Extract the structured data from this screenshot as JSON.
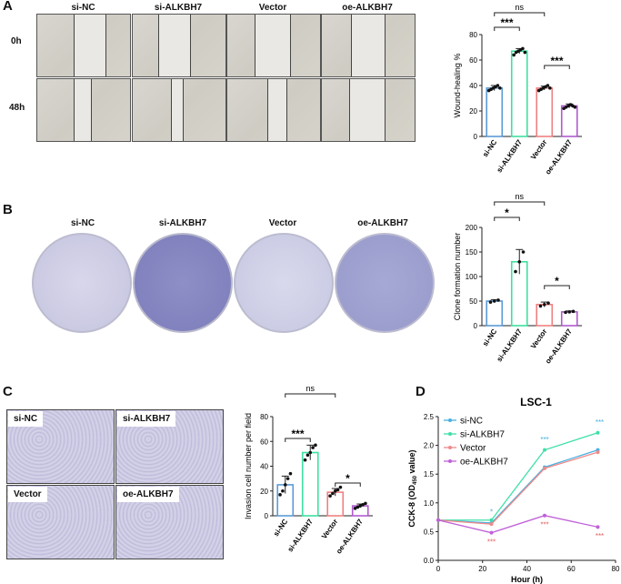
{
  "panels": {
    "A": {
      "label": "A",
      "columns": [
        "si-NC",
        "si-ALKBH7",
        "Vector",
        "oe-ALKBH7"
      ],
      "rows": [
        "0h",
        "48h"
      ]
    },
    "B": {
      "label": "B",
      "columns": [
        "si-NC",
        "si-ALKBH7",
        "Vector",
        "oe-ALKBH7"
      ]
    },
    "C": {
      "label": "C",
      "images": [
        "si-NC",
        "si-ALKBH7",
        "Vector",
        "oe-ALKBH7"
      ]
    },
    "D": {
      "label": "D"
    }
  },
  "chart_data": [
    {
      "id": "A",
      "type": "bar",
      "categories": [
        "si-NC",
        "si-ALKBH7",
        "Vector",
        "oe-ALKBH7"
      ],
      "values": [
        38,
        67,
        38,
        24
      ],
      "errors": [
        2,
        2,
        1.5,
        1.5
      ],
      "points": [
        [
          36,
          37,
          38,
          39,
          40,
          38
        ],
        [
          64,
          66,
          67,
          68,
          69,
          66
        ],
        [
          36,
          37,
          38,
          39,
          40,
          38
        ],
        [
          22,
          23,
          24,
          25,
          24,
          23
        ]
      ],
      "colors": [
        "#5b9bd5",
        "#3ee0a0",
        "#f08080",
        "#b05ad0"
      ],
      "xlabel": "",
      "ylabel": "Wound-healing %",
      "yticks": [
        "0",
        "20",
        "40",
        "60",
        "80"
      ],
      "ylim": [
        0,
        80
      ],
      "significance": [
        {
          "from": 0,
          "to": 1,
          "label": "***"
        },
        {
          "from": 0,
          "to": 2,
          "label": "ns"
        },
        {
          "from": 2,
          "to": 3,
          "label": "***"
        }
      ]
    },
    {
      "id": "B",
      "type": "bar",
      "categories": [
        "si-NC",
        "si-ALKBH7",
        "Vector",
        "oe-ALKBH7"
      ],
      "values": [
        50,
        130,
        43,
        28
      ],
      "errors": [
        3,
        25,
        5,
        2
      ],
      "points": [
        [
          48,
          50,
          52
        ],
        [
          110,
          130,
          150
        ],
        [
          40,
          43,
          46
        ],
        [
          27,
          28,
          29
        ]
      ],
      "colors": [
        "#5b9bd5",
        "#3ee0a0",
        "#f08080",
        "#b05ad0"
      ],
      "xlabel": "",
      "ylabel": "Clone formation number",
      "yticks": [
        "0",
        "50",
        "100",
        "150",
        "200"
      ],
      "ylim": [
        0,
        200
      ],
      "significance": [
        {
          "from": 0,
          "to": 1,
          "label": "*"
        },
        {
          "from": 0,
          "to": 2,
          "label": "ns"
        },
        {
          "from": 2,
          "to": 3,
          "label": "*"
        }
      ]
    },
    {
      "id": "C",
      "type": "bar",
      "categories": [
        "si-NC",
        "si-ALKBH7",
        "Vector",
        "oe-ALKBH7"
      ],
      "values": [
        25,
        51,
        19,
        8
      ],
      "errors": [
        7,
        6,
        3,
        1.5
      ],
      "points": [
        [
          17,
          20,
          25,
          30,
          34
        ],
        [
          45,
          49,
          51,
          55,
          57
        ],
        [
          16,
          18,
          20,
          21,
          23
        ],
        [
          6,
          7,
          8,
          9,
          10
        ]
      ],
      "colors": [
        "#5b9bd5",
        "#3ee0a0",
        "#f08080",
        "#b05ad0"
      ],
      "xlabel": "",
      "ylabel": "Invasion cell number per field",
      "yticks": [
        "0",
        "20",
        "40",
        "60",
        "80"
      ],
      "ylim": [
        0,
        80
      ],
      "significance": [
        {
          "from": 0,
          "to": 1,
          "label": "***"
        },
        {
          "from": 0,
          "to": 2,
          "label": "ns"
        },
        {
          "from": 2,
          "to": 3,
          "label": "*"
        }
      ]
    },
    {
      "id": "D",
      "type": "line",
      "title": "LSC-1",
      "xlabel": "Hour (h)",
      "ylabel_main": "CCK-8 (OD",
      "ylabel_sub": "450",
      "ylabel_tail": " value)",
      "x": [
        0,
        24,
        48,
        72
      ],
      "xlim": [
        0,
        80
      ],
      "ylim": [
        0.0,
        2.5
      ],
      "xticks": [
        "0",
        "20",
        "40",
        "60",
        "80"
      ],
      "yticks": [
        "0.0",
        "0.5",
        "1.0",
        "1.5",
        "2.0",
        "2.5"
      ],
      "series": [
        {
          "name": "si-NC",
          "color": "#4ab0e0",
          "values": [
            0.7,
            0.65,
            1.62,
            1.92
          ]
        },
        {
          "name": "si-ALKBH7",
          "color": "#3edfa8",
          "values": [
            0.7,
            0.7,
            1.92,
            2.22
          ]
        },
        {
          "name": "Vector",
          "color": "#f08a8a",
          "values": [
            0.7,
            0.63,
            1.6,
            1.88
          ]
        },
        {
          "name": "oe-ALKBH7",
          "color": "#c060d8",
          "values": [
            0.7,
            0.48,
            0.78,
            0.58
          ]
        }
      ],
      "annotations": [
        {
          "x": 24,
          "y": 0.8,
          "label": "*",
          "color": "#4ab0e0"
        },
        {
          "x": 48,
          "y": 2.06,
          "label": "***",
          "color": "#4ab0e0"
        },
        {
          "x": 72,
          "y": 2.36,
          "label": "***",
          "color": "#4ab0e0"
        },
        {
          "x": 24,
          "y": 0.28,
          "label": "***",
          "color": "#e06060"
        },
        {
          "x": 48,
          "y": 0.58,
          "label": "***",
          "color": "#e06060"
        },
        {
          "x": 72,
          "y": 0.38,
          "label": "***",
          "color": "#e06060"
        }
      ]
    }
  ]
}
